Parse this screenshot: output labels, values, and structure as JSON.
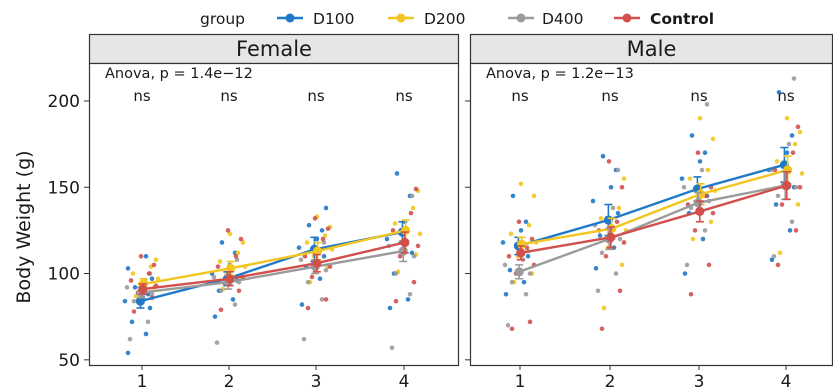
{
  "chart_data": {
    "type": "scatter",
    "ylabel": "Body Weight (g)",
    "x_ticks": [
      "1",
      "2",
      "3",
      "4"
    ],
    "y_ticks": [
      50,
      100,
      150,
      200
    ],
    "ylim": [
      47,
      222
    ],
    "grid": false,
    "legend": {
      "title": "group",
      "placement": "top",
      "entries": [
        "D100",
        "D200",
        "D400",
        "Control"
      ]
    },
    "colors": {
      "D100": "#1f78c8",
      "D200": "#f2c61f",
      "D400": "#9b9b9b",
      "Control": "#d1504c",
      "strip": "#e6e6e6",
      "border": "#333333"
    },
    "facets": [
      {
        "label": "Female",
        "test_label": "Anova, p = 1.4e−12",
        "sig_labels": [
          "ns",
          "ns",
          "ns",
          "ns"
        ],
        "means": {
          "D100": [
            84,
            97,
            114,
            124
          ],
          "D200": [
            94,
            103,
            113,
            125
          ],
          "D400": [
            89,
            95,
            104,
            113
          ],
          "Control": [
            91,
            97,
            106,
            118
          ]
        },
        "errors": {
          "D100": [
            4,
            4,
            7,
            6
          ],
          "D200": [
            3,
            4,
            5,
            6
          ],
          "D400": [
            3,
            4,
            4,
            6
          ],
          "Control": [
            3,
            4,
            5,
            6
          ]
        },
        "points": {
          "D100": [
            [
              54,
              65,
              72,
              80,
              84,
              86,
              88,
              92,
              97,
              103,
              110
            ],
            [
              75,
              85,
              90,
              96,
              100,
              105,
              112,
              118
            ],
            [
              82,
              97,
              104,
              110,
              115,
              120,
              125,
              128,
              138
            ],
            [
              80,
              85,
              100,
              112,
              120,
              130,
              145,
              158
            ]
          ],
          "D200": [
            [
              87,
              92,
              94,
              97,
              100,
              104,
              108
            ],
            [
              91,
              97,
              100,
              104,
              107,
              112,
              118,
              123
            ],
            [
              95,
              104,
              110,
              114,
              118,
              122,
              127,
              133
            ],
            [
              101,
              111,
              118,
              123,
              129,
              138,
              148
            ]
          ],
          "D400": [
            [
              62,
              72,
              84,
              88,
              92,
              96,
              100
            ],
            [
              60,
              82,
              90,
              95,
              98,
              103,
              108
            ],
            [
              62,
              85,
              95,
              102,
              108,
              113,
              118
            ],
            [
              57,
              88,
              100,
              110,
              116,
              125,
              145
            ]
          ],
          "Control": [
            [
              78,
              86,
              89,
              93,
              96,
              100,
              105,
              110
            ],
            [
              79,
              90,
              94,
              98,
              104,
              110,
              120,
              125
            ],
            [
              80,
              85,
              98,
              104,
              110,
              120,
              126,
              132
            ],
            [
              84,
              95,
              110,
              116,
              125,
              135,
              149
            ]
          ]
        }
      },
      {
        "label": "Male",
        "test_label": "Anova, p = 1.2e−13",
        "sig_labels": [
          "ns",
          "ns",
          "ns",
          "ns"
        ],
        "means": {
          "D100": [
            116,
            131,
            149,
            163
          ],
          "D200": [
            117,
            126,
            146,
            160
          ],
          "D400": [
            101,
            120,
            141,
            151
          ],
          "Control": [
            112,
            121,
            136,
            151
          ]
        },
        "errors": {
          "D100": [
            5,
            9,
            7,
            10
          ],
          "D200": [
            4,
            6,
            6,
            8
          ],
          "D400": [
            4,
            6,
            6,
            8
          ],
          "Control": [
            4,
            6,
            6,
            8
          ]
        },
        "points": {
          "D100": [
            [
              88,
              95,
              102,
              110,
              118,
              125,
              130,
              145
            ],
            [
              103,
              115,
              122,
              135,
              142,
              150,
              160,
              168
            ],
            [
              100,
              120,
              135,
              145,
              155,
              165,
              170,
              180
            ],
            [
              108,
              125,
              140,
              150,
              160,
              170,
              180,
              205
            ]
          ],
          "D200": [
            [
              95,
              100,
              110,
              118,
              123,
              128,
              145,
              152
            ],
            [
              80,
              105,
              115,
              125,
              132,
              138,
              155
            ],
            [
              120,
              130,
              140,
              148,
              155,
              160,
              178,
              190
            ],
            [
              112,
              140,
              150,
              158,
              165,
              175,
              182,
              190
            ]
          ],
          "D400": [
            [
              70,
              88,
              95,
              100,
              105,
              108,
              113
            ],
            [
              90,
              100,
              112,
              120,
              128,
              138,
              160
            ],
            [
              105,
              125,
              138,
              142,
              150,
              160,
              198
            ],
            [
              110,
              130,
              145,
              150,
              160,
              175,
              213
            ]
          ],
          "Control": [
            [
              68,
              72,
              100,
              105,
              110,
              115,
              120,
              130
            ],
            [
              68,
              90,
              110,
              118,
              125,
              130,
              150,
              165
            ],
            [
              88,
              105,
              125,
              135,
              140,
              145,
              150,
              170
            ],
            [
              105,
              125,
              140,
              150,
              160,
              170,
              185
            ]
          ]
        }
      }
    ]
  }
}
